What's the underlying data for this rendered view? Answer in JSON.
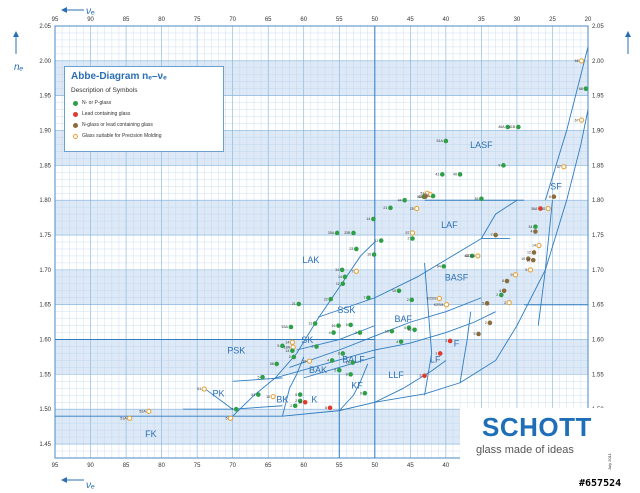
{
  "chart_data": {
    "type": "scatter",
    "title": "Abbe-Diagram nₑ–νₑ",
    "xlabel": "νₑ",
    "ylabel": "nₑ",
    "xlim": [
      95,
      20
    ],
    "ylim": [
      1.43,
      2.05
    ],
    "x_axis_reversed": true,
    "x_ticks": [
      95,
      90,
      85,
      80,
      75,
      70,
      65,
      60,
      55,
      50,
      45,
      40,
      35,
      30,
      25,
      20
    ],
    "y_ticks": [
      1.45,
      1.5,
      1.55,
      1.6,
      1.65,
      1.7,
      1.75,
      1.8,
      1.85,
      1.9,
      1.95,
      2.0,
      2.05
    ],
    "grid": true,
    "legend_placement": "top-left",
    "legend_heading": "Description of Symbols",
    "legend": [
      {
        "key": "n",
        "label": "N- or P-glass",
        "color": "#2e9e47",
        "outline": false
      },
      {
        "key": "l",
        "label": "Lead containing glass",
        "color": "#e03a2e",
        "outline": false
      },
      {
        "key": "b",
        "label": "N-glass or lead containing glass",
        "color": "#8b6c3c",
        "outline": false
      },
      {
        "key": "o",
        "label": "Glass suitable for Precision Molding",
        "color": "#e6a33a",
        "outline": true
      }
    ],
    "regions": [
      {
        "label": "LASF",
        "x": 35,
        "y": 1.875
      },
      {
        "label": "SF",
        "x": 24.5,
        "y": 1.815
      },
      {
        "label": "LAF",
        "x": 39.5,
        "y": 1.76
      },
      {
        "label": "LAK",
        "x": 59,
        "y": 1.71
      },
      {
        "label": "BASF",
        "x": 38.5,
        "y": 1.685
      },
      {
        "label": "SSK",
        "x": 54,
        "y": 1.638
      },
      {
        "label": "BAF",
        "x": 46,
        "y": 1.625
      },
      {
        "label": "SK",
        "x": 59.5,
        "y": 1.595
      },
      {
        "label": "F",
        "x": 38.5,
        "y": 1.59
      },
      {
        "label": "PSK",
        "x": 69.5,
        "y": 1.58
      },
      {
        "label": "BALF",
        "x": 53,
        "y": 1.567
      },
      {
        "label": "LF",
        "x": 41.5,
        "y": 1.567
      },
      {
        "label": "BAK",
        "x": 58,
        "y": 1.552
      },
      {
        "label": "LLF",
        "x": 47,
        "y": 1.545
      },
      {
        "label": "PK",
        "x": 72,
        "y": 1.518
      },
      {
        "label": "KF",
        "x": 52.5,
        "y": 1.53
      },
      {
        "label": "BK",
        "x": 63,
        "y": 1.51
      },
      {
        "label": "K",
        "x": 58.5,
        "y": 1.51
      },
      {
        "label": "FK",
        "x": 81.5,
        "y": 1.46
      }
    ],
    "points": [
      {
        "label": "66",
        "x": 20.9,
        "y": 2.0,
        "type": "o"
      },
      {
        "label": "68",
        "x": 20.3,
        "y": 1.96,
        "type": "n"
      },
      {
        "label": "67",
        "x": 20.9,
        "y": 1.915,
        "type": "o"
      },
      {
        "label": "46A",
        "x": 31.3,
        "y": 1.905,
        "type": "n"
      },
      {
        "label": "41B",
        "x": 29.8,
        "y": 1.905,
        "type": "n"
      },
      {
        "label": "51A",
        "x": 40.0,
        "y": 1.885,
        "type": "n"
      },
      {
        "label": "9",
        "x": 31.9,
        "y": 1.85,
        "type": "n"
      },
      {
        "label": "57",
        "x": 23.4,
        "y": 1.848,
        "type": "o"
      },
      {
        "label": "41",
        "x": 40.5,
        "y": 1.837,
        "type": "n"
      },
      {
        "label": "40",
        "x": 38.0,
        "y": 1.837,
        "type": "n"
      },
      {
        "label": "33",
        "x": 43.1,
        "y": 1.805,
        "type": "n"
      },
      {
        "label": "44",
        "x": 45.8,
        "y": 1.8,
        "type": "n"
      },
      {
        "label": "51",
        "x": 42.6,
        "y": 1.81,
        "type": "o"
      },
      {
        "label": "30",
        "x": 42.2,
        "y": 1.808,
        "type": "o"
      },
      {
        "label": "31",
        "x": 41.8,
        "y": 1.806,
        "type": "n"
      },
      {
        "label": "43",
        "x": 42.9,
        "y": 1.805,
        "type": "b"
      },
      {
        "label": "35",
        "x": 35.0,
        "y": 1.802,
        "type": "n"
      },
      {
        "label": "6",
        "x": 24.8,
        "y": 1.805,
        "type": "b"
      },
      {
        "label": "21",
        "x": 47.8,
        "y": 1.789,
        "type": "n"
      },
      {
        "label": "25",
        "x": 44.1,
        "y": 1.788,
        "type": "o"
      },
      {
        "label": "36A",
        "x": 26.7,
        "y": 1.788,
        "type": "l"
      },
      {
        "label": "10",
        "x": 25.6,
        "y": 1.788,
        "type": "o"
      },
      {
        "label": "34",
        "x": 27.4,
        "y": 1.762,
        "type": "n"
      },
      {
        "label": "35A",
        "x": 55.3,
        "y": 1.753,
        "type": "n"
      },
      {
        "label": "33B",
        "x": 53.0,
        "y": 1.753,
        "type": "n"
      },
      {
        "label": "14",
        "x": 50.2,
        "y": 1.773,
        "type": "n"
      },
      {
        "label": "57",
        "x": 44.7,
        "y": 1.753,
        "type": "o"
      },
      {
        "label": "7",
        "x": 33.0,
        "y": 1.75,
        "type": "b"
      },
      {
        "label": "4",
        "x": 27.4,
        "y": 1.755,
        "type": "b"
      },
      {
        "label": "11",
        "x": 49.1,
        "y": 1.742,
        "type": "n"
      },
      {
        "label": "2",
        "x": 44.7,
        "y": 1.745,
        "type": "n"
      },
      {
        "label": "23",
        "x": 52.6,
        "y": 1.73,
        "type": "n"
      },
      {
        "label": "10",
        "x": 50.1,
        "y": 1.722,
        "type": "n"
      },
      {
        "label": "14",
        "x": 26.9,
        "y": 1.735,
        "type": "o"
      },
      {
        "label": "12",
        "x": 27.6,
        "y": 1.725,
        "type": "b"
      },
      {
        "label": "10",
        "x": 28.4,
        "y": 1.716,
        "type": "b"
      },
      {
        "label": "42",
        "x": 36.3,
        "y": 1.72,
        "type": "n"
      },
      {
        "label": "42D14",
        "x": 35.5,
        "y": 1.72,
        "type": "o"
      },
      {
        "label": "15",
        "x": 27.7,
        "y": 1.714,
        "type": "b"
      },
      {
        "label": "5",
        "x": 28.1,
        "y": 1.7,
        "type": "o"
      },
      {
        "label": "64",
        "x": 40.3,
        "y": 1.705,
        "type": "n"
      },
      {
        "label": "34",
        "x": 54.6,
        "y": 1.7,
        "type": "n"
      },
      {
        "label": "7",
        "x": 52.6,
        "y": 1.698,
        "type": "o"
      },
      {
        "label": "14",
        "x": 54.2,
        "y": 1.69,
        "type": "n"
      },
      {
        "label": "9",
        "x": 30.2,
        "y": 1.693,
        "type": "o"
      },
      {
        "label": "8",
        "x": 31.4,
        "y": 1.684,
        "type": "b"
      },
      {
        "label": "12",
        "x": 54.5,
        "y": 1.68,
        "type": "n"
      },
      {
        "label": "10",
        "x": 46.6,
        "y": 1.67,
        "type": "n"
      },
      {
        "label": "4",
        "x": 31.8,
        "y": 1.67,
        "type": "b"
      },
      {
        "label": "2",
        "x": 32.2,
        "y": 1.664,
        "type": "n"
      },
      {
        "label": "22",
        "x": 56.2,
        "y": 1.658,
        "type": "n"
      },
      {
        "label": "7",
        "x": 50.9,
        "y": 1.66,
        "type": "n"
      },
      {
        "label": "K2SI3",
        "x": 40.9,
        "y": 1.659,
        "type": "o"
      },
      {
        "label": "21",
        "x": 60.7,
        "y": 1.651,
        "type": "n"
      },
      {
        "label": "2",
        "x": 44.8,
        "y": 1.657,
        "type": "n"
      },
      {
        "label": "K2SI4",
        "x": 39.9,
        "y": 1.65,
        "type": "o"
      },
      {
        "label": "5",
        "x": 34.2,
        "y": 1.652,
        "type": "b"
      },
      {
        "label": "2",
        "x": 31.1,
        "y": 1.653,
        "type": "o"
      },
      {
        "label": "16",
        "x": 55.1,
        "y": 1.62,
        "type": "n"
      },
      {
        "label": "9",
        "x": 53.4,
        "y": 1.621,
        "type": "n"
      },
      {
        "label": "2",
        "x": 33.8,
        "y": 1.624,
        "type": "b"
      },
      {
        "label": "5",
        "x": 35.4,
        "y": 1.608,
        "type": "b"
      },
      {
        "label": "53A",
        "x": 61.8,
        "y": 1.618,
        "type": "n"
      },
      {
        "label": "11",
        "x": 58.4,
        "y": 1.623,
        "type": "n"
      },
      {
        "label": "4",
        "x": 45.2,
        "y": 1.617,
        "type": "n"
      },
      {
        "label": "52",
        "x": 44.4,
        "y": 1.614,
        "type": "n"
      },
      {
        "label": "10",
        "x": 47.6,
        "y": 1.612,
        "type": "n"
      },
      {
        "label": "4",
        "x": 55.8,
        "y": 1.61,
        "type": "n"
      },
      {
        "label": "3",
        "x": 52.1,
        "y": 1.61,
        "type": "n"
      },
      {
        "label": "4",
        "x": 46.3,
        "y": 1.597,
        "type": "n"
      },
      {
        "label": "3",
        "x": 39.4,
        "y": 1.598,
        "type": "l"
      },
      {
        "label": "5",
        "x": 63.0,
        "y": 1.591,
        "type": "n"
      },
      {
        "label": "14",
        "x": 61.6,
        "y": 1.596,
        "type": "o"
      },
      {
        "label": "18A",
        "x": 61.5,
        "y": 1.589,
        "type": "o"
      },
      {
        "label": "2",
        "x": 58.2,
        "y": 1.59,
        "type": "n"
      },
      {
        "label": "14",
        "x": 61.6,
        "y": 1.584,
        "type": "n"
      },
      {
        "label": "2",
        "x": 61.4,
        "y": 1.575,
        "type": "n"
      },
      {
        "label": "8",
        "x": 54.5,
        "y": 1.58,
        "type": "n"
      },
      {
        "label": "1",
        "x": 40.8,
        "y": 1.58,
        "type": "l"
      },
      {
        "label": "10",
        "x": 59.2,
        "y": 1.569,
        "type": "o"
      },
      {
        "label": "4",
        "x": 56.0,
        "y": 1.57,
        "type": "n"
      },
      {
        "label": "58",
        "x": 63.8,
        "y": 1.565,
        "type": "n"
      },
      {
        "label": "10",
        "x": 53.1,
        "y": 1.567,
        "type": "n"
      },
      {
        "label": "5",
        "x": 55.0,
        "y": 1.556,
        "type": "n"
      },
      {
        "label": "5",
        "x": 65.8,
        "y": 1.546,
        "type": "n"
      },
      {
        "label": "8",
        "x": 53.4,
        "y": 1.55,
        "type": "n"
      },
      {
        "label": "5",
        "x": 43.0,
        "y": 1.548,
        "type": "l"
      },
      {
        "label": "51",
        "x": 74.0,
        "y": 1.529,
        "type": "o"
      },
      {
        "label": "51",
        "x": 66.4,
        "y": 1.521,
        "type": "n"
      },
      {
        "label": "5",
        "x": 60.5,
        "y": 1.521,
        "type": "n"
      },
      {
        "label": "9",
        "x": 51.4,
        "y": 1.523,
        "type": "n"
      },
      {
        "label": "10",
        "x": 64.3,
        "y": 1.518,
        "type": "o"
      },
      {
        "label": "2",
        "x": 60.5,
        "y": 1.512,
        "type": "n"
      },
      {
        "label": "10",
        "x": 59.8,
        "y": 1.51,
        "type": "l"
      },
      {
        "label": "5",
        "x": 56.3,
        "y": 1.502,
        "type": "l"
      },
      {
        "label": "2",
        "x": 61.2,
        "y": 1.505,
        "type": "n"
      },
      {
        "label": "7",
        "x": 69.5,
        "y": 1.5,
        "type": "n"
      },
      {
        "label": "52A",
        "x": 81.8,
        "y": 1.497,
        "type": "o"
      },
      {
        "label": "51A",
        "x": 84.5,
        "y": 1.487,
        "type": "o"
      },
      {
        "label": "5",
        "x": 70.3,
        "y": 1.487,
        "type": "o"
      }
    ]
  },
  "legend_heading": "Description of Symbols",
  "brand": {
    "name": "SCHOTT",
    "tagline": "glass made of ideas"
  },
  "side_note": "July 2011",
  "watermark": "#657524"
}
